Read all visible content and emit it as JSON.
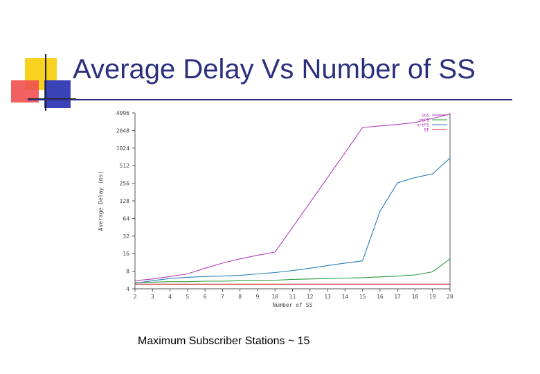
{
  "slide": {
    "title": "Average Delay Vs Number of SS",
    "caption": "Maximum Subscriber Stations ~ 15"
  },
  "chart_data": {
    "type": "line",
    "title": "",
    "xlabel": "Number of SS",
    "ylabel": "Average Delay (ms)",
    "y_scale": "log2",
    "xlim": [
      2,
      20
    ],
    "ylim": [
      4,
      4096
    ],
    "grid": false,
    "legend_position": "top-right",
    "x_ticks": [
      2,
      3,
      4,
      5,
      6,
      7,
      8,
      9,
      10,
      11,
      12,
      13,
      14,
      15,
      16,
      17,
      18,
      19,
      20
    ],
    "y_ticks": [
      4,
      8,
      16,
      32,
      64,
      128,
      256,
      512,
      1024,
      2048,
      4096
    ],
    "y_tick_labels": [
      "4",
      "8",
      "16",
      "32",
      "64",
      "128",
      "256",
      "512",
      "1024",
      "2048",
      "4096"
    ],
    "series": [
      {
        "name": "UGS",
        "color": "#b23cb8",
        "x": [
          2,
          3,
          4,
          5,
          6,
          7,
          8,
          9,
          10,
          11,
          12,
          13,
          14,
          15,
          16,
          17,
          18,
          19,
          20
        ],
        "y": [
          5.5,
          5.9,
          6.5,
          7.2,
          9,
          11,
          13,
          15,
          17,
          45,
          120,
          320,
          850,
          2300,
          2450,
          2600,
          2800,
          3300,
          3900
        ]
      },
      {
        "name": "rtPS",
        "color": "#2a9c3c",
        "x": [
          2,
          3,
          4,
          5,
          6,
          7,
          8,
          9,
          10,
          11,
          12,
          13,
          14,
          15,
          16,
          17,
          18,
          19,
          20
        ],
        "y": [
          5.1,
          5.2,
          5.3,
          5.3,
          5.4,
          5.4,
          5.5,
          5.5,
          5.6,
          5.8,
          5.9,
          6.0,
          6.1,
          6.2,
          6.4,
          6.6,
          6.9,
          7.8,
          13
        ]
      },
      {
        "name": "nrtPS",
        "color": "#2a7fb8",
        "x": [
          2,
          3,
          4,
          5,
          6,
          7,
          8,
          9,
          10,
          11,
          12,
          13,
          14,
          15,
          16,
          17,
          18,
          19,
          20
        ],
        "y": [
          5.0,
          5.5,
          6.0,
          6.3,
          6.5,
          6.6,
          6.8,
          7.2,
          7.6,
          8.2,
          9.0,
          10,
          11,
          12,
          85,
          260,
          320,
          370,
          690
        ]
      },
      {
        "name": "BE",
        "color": "#c42a2a",
        "x": [
          2,
          3,
          4,
          5,
          6,
          7,
          8,
          9,
          10,
          11,
          12,
          13,
          14,
          15,
          16,
          17,
          18,
          19,
          20
        ],
        "y": [
          4.8,
          4.8,
          4.8,
          4.8,
          4.8,
          4.8,
          4.8,
          4.8,
          4.8,
          4.8,
          4.8,
          4.8,
          4.8,
          4.8,
          4.8,
          4.8,
          4.8,
          4.8,
          4.8
        ]
      }
    ]
  }
}
